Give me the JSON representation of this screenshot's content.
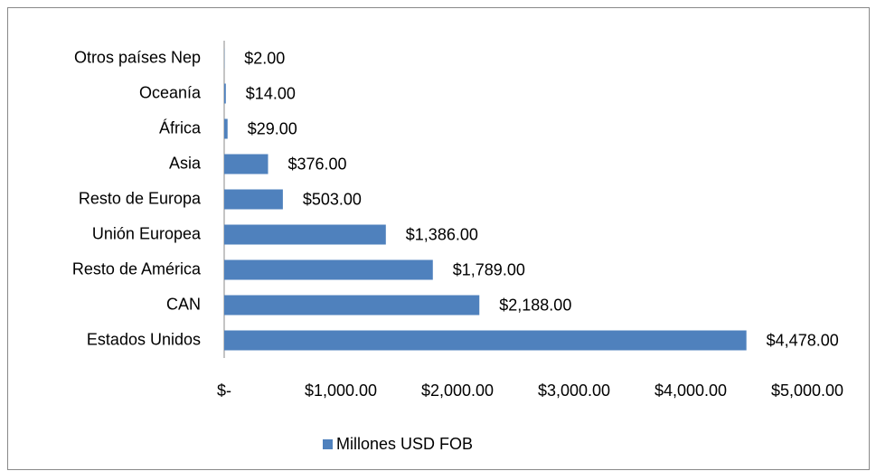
{
  "chart_data": {
    "type": "bar",
    "orientation": "horizontal",
    "categories": [
      "Otros países Nep",
      "Oceanía",
      "África",
      "Asia",
      "Resto de Europa",
      "Unión Europea",
      "Resto de América",
      "CAN",
      "Estados Unidos"
    ],
    "series": [
      {
        "name": "Millones USD FOB",
        "color": "#4f81bd",
        "values": [
          2,
          14,
          29,
          376,
          503,
          1386,
          1789,
          2188,
          4478
        ],
        "value_labels": [
          "$2.00",
          "$14.00",
          "$29.00",
          "$376.00",
          "$503.00",
          "$1,386.00",
          "$1,789.00",
          "$2,188.00",
          "$4,478.00"
        ]
      }
    ],
    "xlim": [
      0,
      5000
    ],
    "xticks": [
      {
        "value": 0,
        "label": "$-"
      },
      {
        "value": 1000,
        "label": "$1,000.00"
      },
      {
        "value": 2000,
        "label": "$2,000.00"
      },
      {
        "value": 3000,
        "label": "$3,000.00"
      },
      {
        "value": 4000,
        "label": "$4,000.00"
      },
      {
        "value": 5000,
        "label": "$5,000.00"
      }
    ],
    "grid": false,
    "legend": "bottom"
  }
}
